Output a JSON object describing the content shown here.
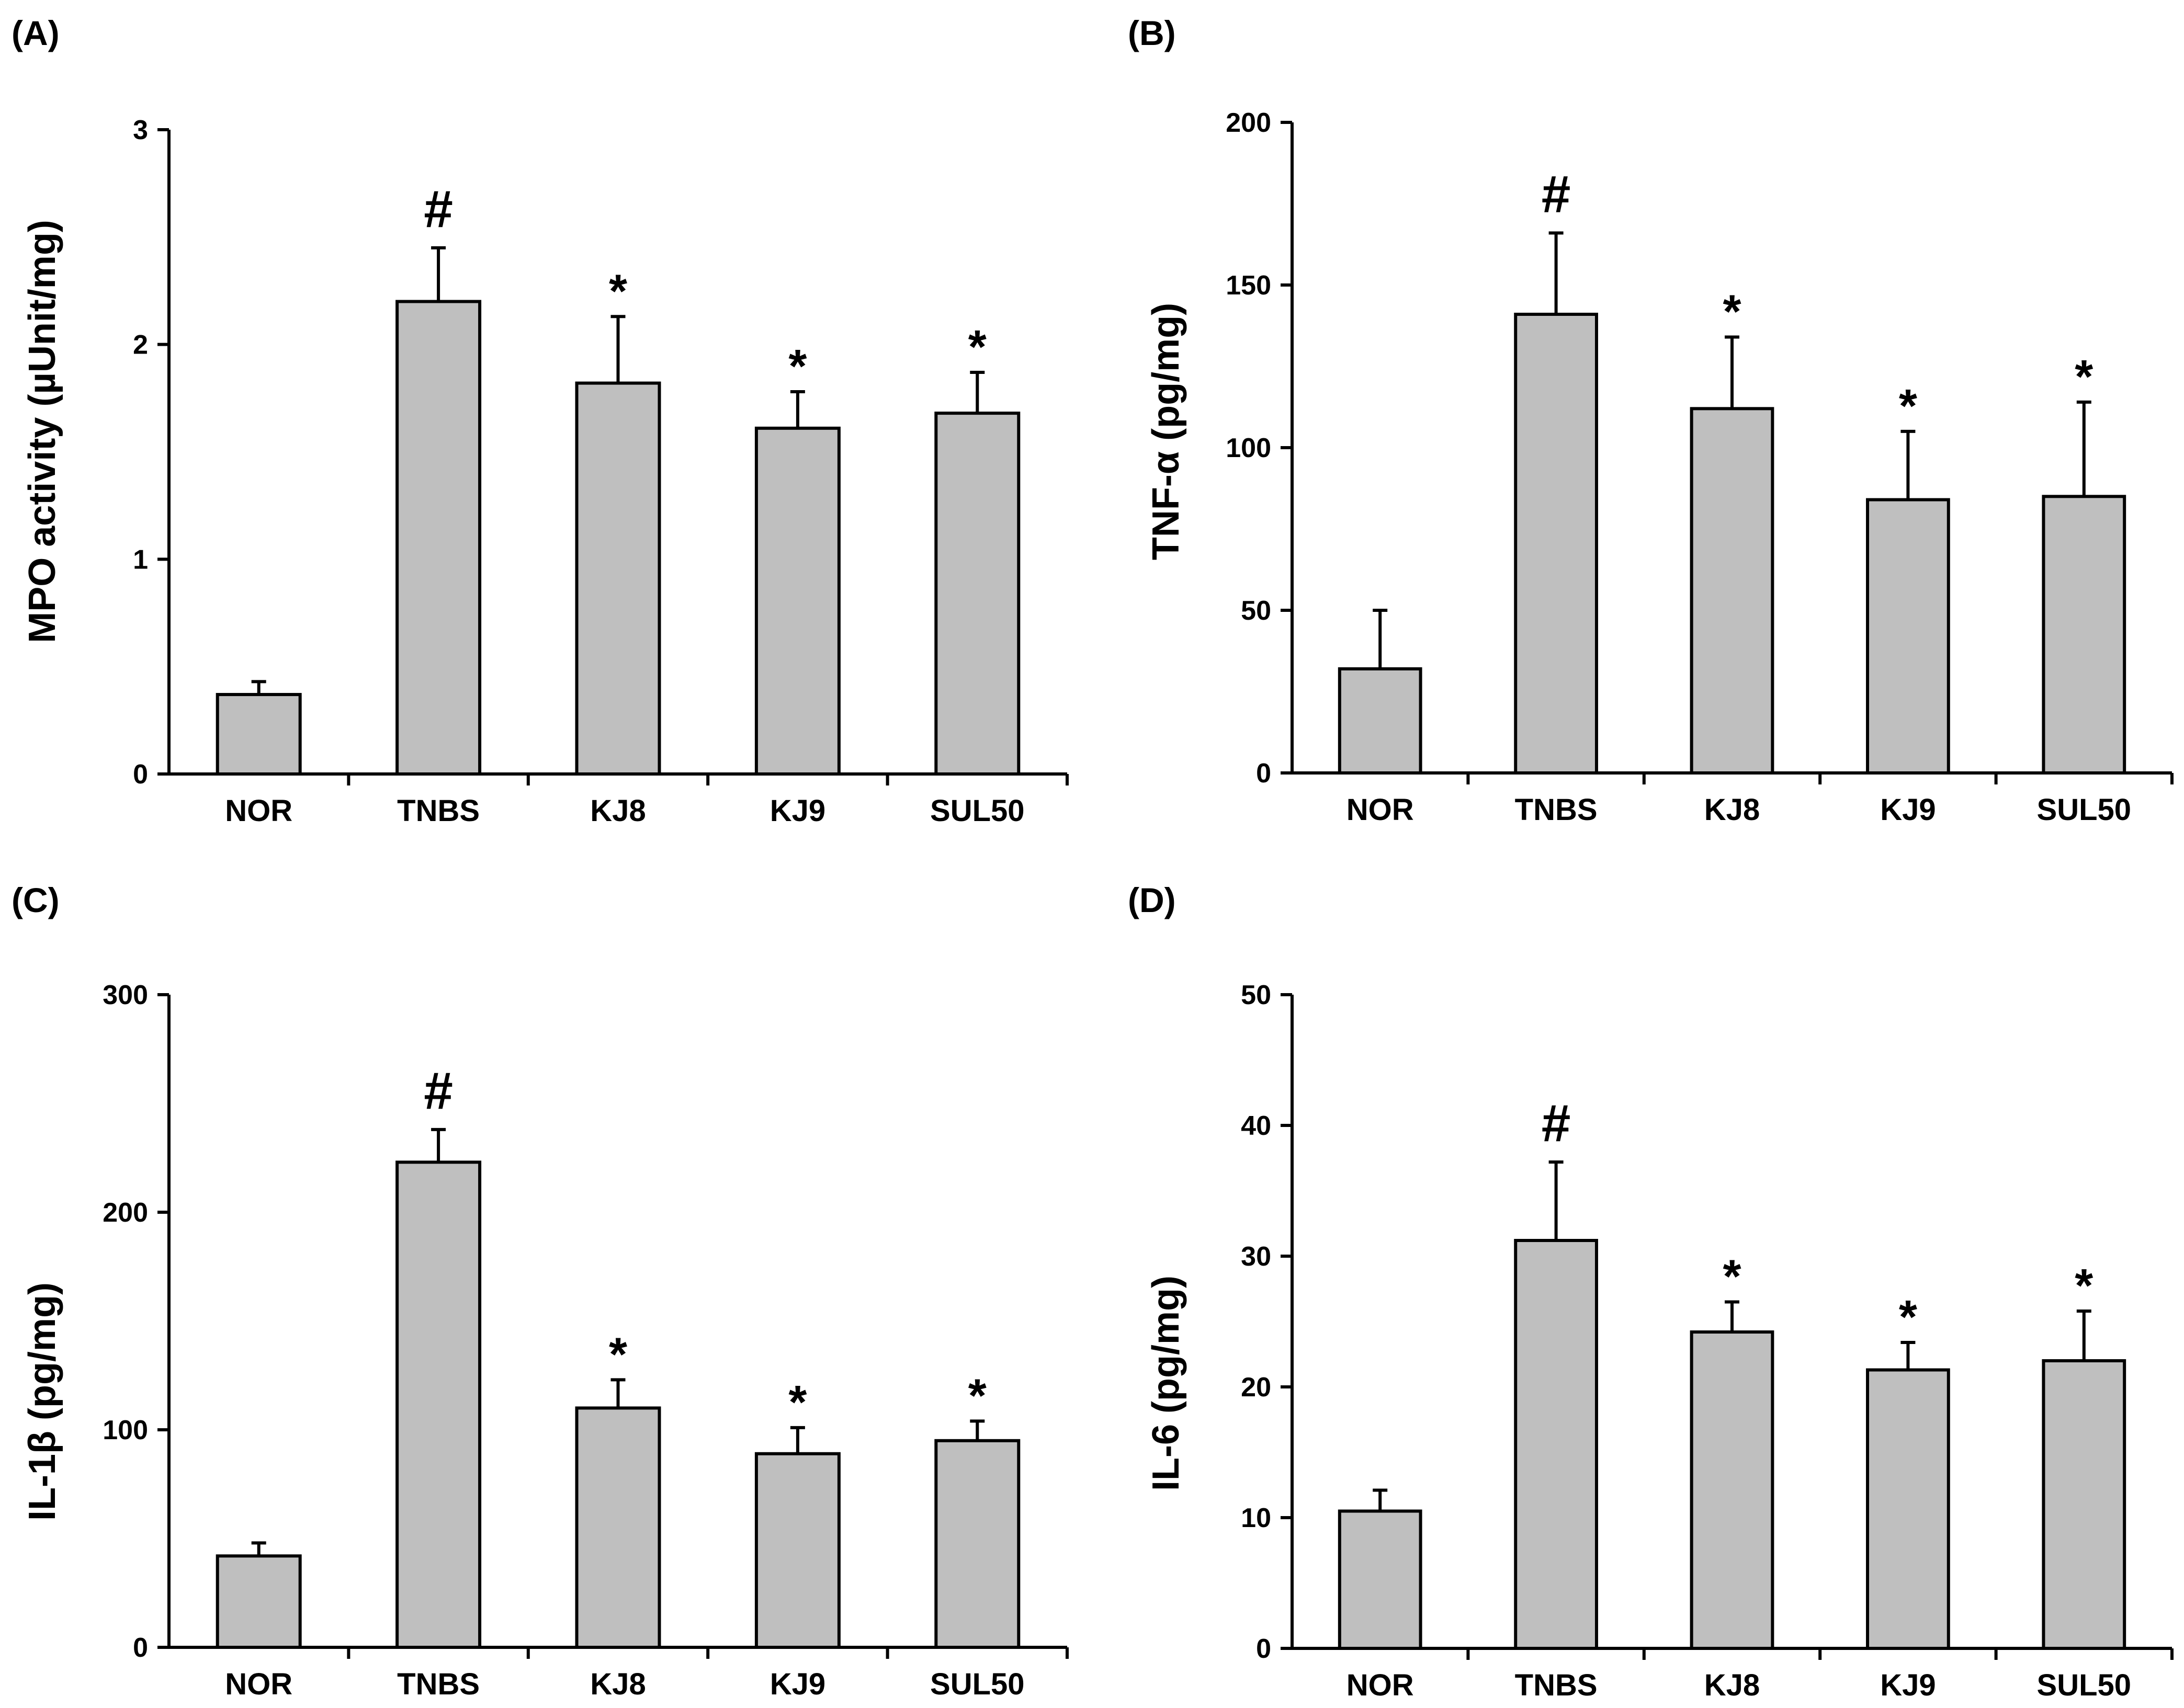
{
  "chart_data": [
    {
      "panel": "(A)",
      "type": "bar",
      "ylabel": "MPO activity (µUnit/mg)",
      "ylim": [
        0,
        3
      ],
      "yticks": [
        0,
        1,
        2,
        3
      ],
      "categories": [
        "NOR",
        "TNBS",
        "KJ8",
        "KJ9",
        "SUL50"
      ],
      "series": [
        {
          "values": [
            0.37,
            2.2,
            1.82,
            1.61,
            1.68
          ],
          "errors": [
            0.06,
            0.25,
            0.31,
            0.17,
            0.19
          ]
        }
      ],
      "annotations": [
        "",
        "#",
        "*",
        "*",
        "*"
      ],
      "bar_color": "#bfbfbf",
      "grid": false
    },
    {
      "panel": "(B)",
      "type": "bar",
      "ylabel": "TNF-α (pg/mg)",
      "ylim": [
        0,
        200
      ],
      "yticks": [
        0,
        50,
        100,
        150,
        200
      ],
      "categories": [
        "NOR",
        "TNBS",
        "KJ8",
        "KJ9",
        "SUL50"
      ],
      "series": [
        {
          "values": [
            32,
            141,
            112,
            84,
            85
          ],
          "errors": [
            18,
            25,
            22,
            21,
            29
          ]
        }
      ],
      "annotations": [
        "",
        "#",
        "*",
        "*",
        "*"
      ],
      "bar_color": "#bfbfbf",
      "grid": false
    },
    {
      "panel": "(C)",
      "type": "bar",
      "ylabel": "IL-1β (pg/mg)",
      "ylim": [
        0,
        300
      ],
      "yticks": [
        0,
        100,
        200,
        300
      ],
      "categories": [
        "NOR",
        "TNBS",
        "KJ8",
        "KJ9",
        "SUL50"
      ],
      "series": [
        {
          "values": [
            42,
            223,
            110,
            89,
            95
          ],
          "errors": [
            6,
            15,
            13,
            12,
            9
          ]
        }
      ],
      "annotations": [
        "",
        "#",
        "*",
        "*",
        "*"
      ],
      "bar_color": "#bfbfbf",
      "grid": false
    },
    {
      "panel": "(D)",
      "type": "bar",
      "ylabel": "IL-6 (pg/mg)",
      "ylim": [
        0,
        50
      ],
      "yticks": [
        0,
        10,
        20,
        30,
        40,
        50
      ],
      "categories": [
        "NOR",
        "TNBS",
        "KJ8",
        "KJ9",
        "SUL50"
      ],
      "series": [
        {
          "values": [
            10.5,
            31.2,
            24.2,
            21.3,
            22
          ],
          "errors": [
            1.6,
            6,
            2.3,
            2.1,
            3.8
          ]
        }
      ],
      "annotations": [
        "",
        "#",
        "*",
        "*",
        "*"
      ],
      "bar_color": "#bfbfbf",
      "grid": false
    }
  ]
}
